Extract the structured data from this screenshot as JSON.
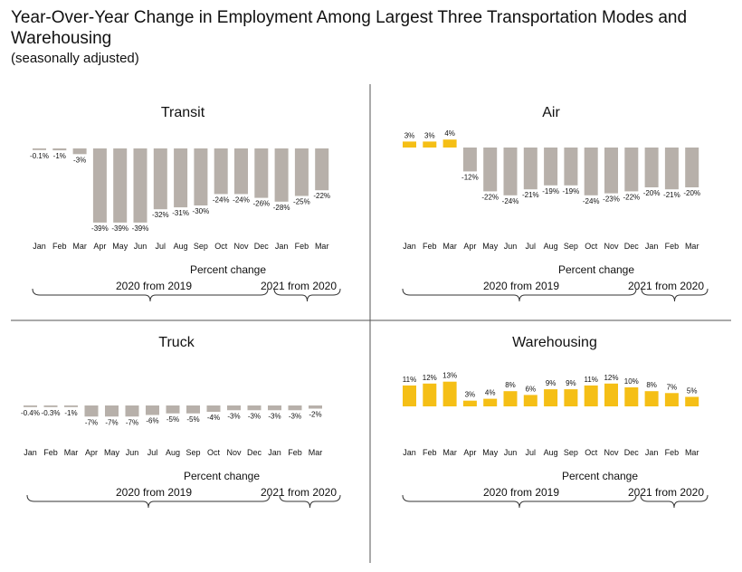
{
  "title": "Year-Over-Year Change in Employment Among Largest Three Transportation Modes and Warehousing",
  "subtitle": "(seasonally adjusted)",
  "colors": {
    "negative": "#b7b0aa",
    "positive": "#f5bf16",
    "text": "#111111",
    "divider": "#555555"
  },
  "chart_data": [
    {
      "type": "bar",
      "title": "Transit",
      "xlabel": "Percent change",
      "categories": [
        "Jan",
        "Feb",
        "Mar",
        "Apr",
        "May",
        "Jun",
        "Jul",
        "Aug",
        "Sep",
        "Oct",
        "Nov",
        "Dec",
        "Jan",
        "Feb",
        "Mar"
      ],
      "values": [
        -0.1,
        -1,
        -3,
        -39,
        -39,
        -39,
        -32,
        -31,
        -30,
        -24,
        -24,
        -26,
        -28,
        -25,
        -22
      ],
      "labels": [
        "-0.1%",
        "-1%",
        "-3%",
        "-39%",
        "-39%",
        "-39%",
        "-32%",
        "-31%",
        "-30%",
        "-24%",
        "-24%",
        "-26%",
        "-28%",
        "-25%",
        "-22%"
      ],
      "groups": [
        {
          "label": "2020 from 2019"
        },
        {
          "label": "2021 from 2020"
        }
      ]
    },
    {
      "type": "bar",
      "title": "Air",
      "xlabel": "Percent change",
      "categories": [
        "Jan",
        "Feb",
        "Mar",
        "Apr",
        "May",
        "Jun",
        "Jul",
        "Aug",
        "Sep",
        "Oct",
        "Nov",
        "Dec",
        "Jan",
        "Feb",
        "Mar"
      ],
      "values": [
        3,
        3,
        4,
        -12,
        -22,
        -24,
        -21,
        -19,
        -19,
        -24,
        -23,
        -22,
        -20,
        -21,
        -20
      ],
      "labels": [
        "3%",
        "3%",
        "4%",
        "-12%",
        "-22%",
        "-24%",
        "-21%",
        "-19%",
        "-19%",
        "-24%",
        "-23%",
        "-22%",
        "-20%",
        "-21%",
        "-20%"
      ],
      "groups": [
        {
          "label": "2020 from 2019"
        },
        {
          "label": "2021 from 2020"
        }
      ]
    },
    {
      "type": "bar",
      "title": "Truck",
      "xlabel": "Percent change",
      "categories": [
        "Jan",
        "Feb",
        "Mar",
        "Apr",
        "May",
        "Jun",
        "Jul",
        "Aug",
        "Sep",
        "Oct",
        "Nov",
        "Dec",
        "Jan",
        "Feb",
        "Mar"
      ],
      "values": [
        -0.4,
        -0.3,
        -1,
        -7,
        -7,
        -7,
        -6,
        -5,
        -5,
        -4,
        -3,
        -3,
        -3,
        -3,
        -2
      ],
      "labels": [
        "-0.4%",
        "-0.3%",
        "-1%",
        "-7%",
        "-7%",
        "-7%",
        "-6%",
        "-5%",
        "-5%",
        "-4%",
        "-3%",
        "-3%",
        "-3%",
        "-3%",
        "-2%"
      ],
      "groups": [
        {
          "label": "2020 from 2019"
        },
        {
          "label": "2021 from 2020"
        }
      ]
    },
    {
      "type": "bar",
      "title": "Warehousing",
      "xlabel": "Percent change",
      "categories": [
        "Jan",
        "Feb",
        "Mar",
        "Apr",
        "May",
        "Jun",
        "Jul",
        "Aug",
        "Sep",
        "Oct",
        "Nov",
        "Dec",
        "Jan",
        "Feb",
        "Mar"
      ],
      "values": [
        11,
        12,
        13,
        3,
        4,
        8,
        6,
        9,
        9,
        11,
        12,
        10,
        8,
        7,
        5
      ],
      "labels": [
        "11%",
        "12%",
        "13%",
        "3%",
        "4%",
        "8%",
        "6%",
        "9%",
        "9%",
        "11%",
        "12%",
        "10%",
        "8%",
        "7%",
        "5%"
      ],
      "groups": [
        {
          "label": "2020 from 2019"
        },
        {
          "label": "2021 from 2020"
        }
      ]
    }
  ]
}
